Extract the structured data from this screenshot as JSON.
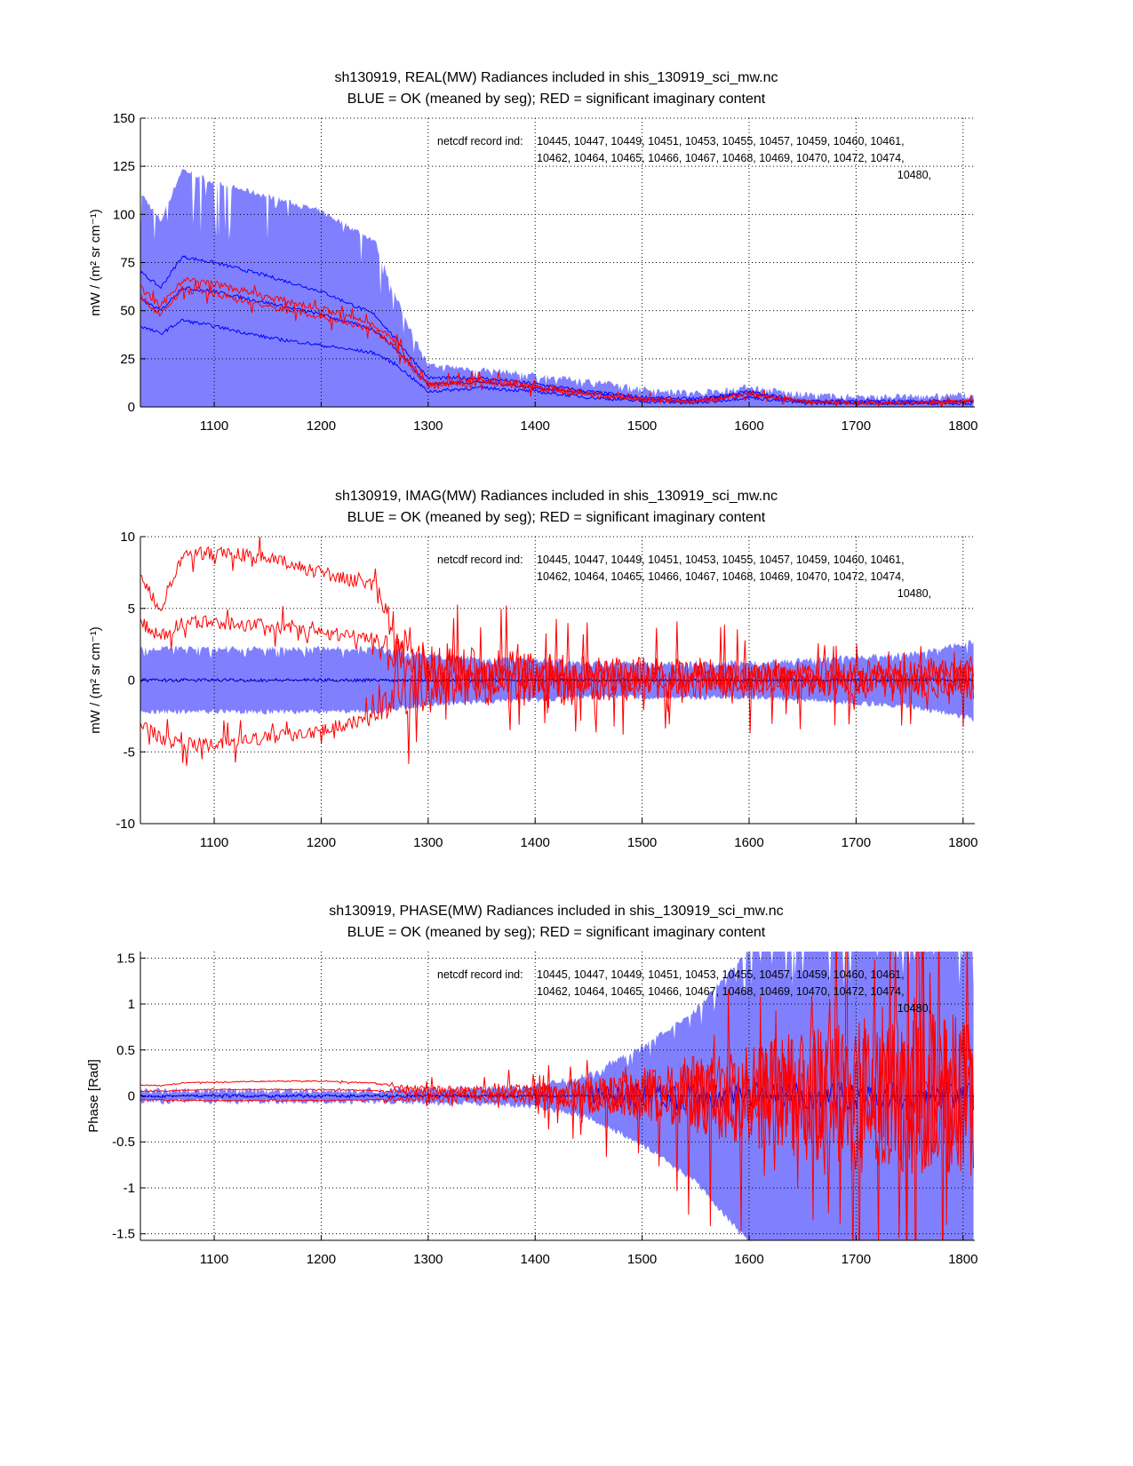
{
  "chart_data": [
    {
      "type": "area",
      "title_line1": "sh130919, REAL(MW) Radiances included in shis_130919_sci_mw.nc",
      "title_line2": "BLUE = OK (meaned by seg); RED = significant imaginary content",
      "ylabel": "mW / (m² sr cm⁻¹)",
      "xlim": [
        1031,
        1811
      ],
      "ylim": [
        0,
        150
      ],
      "xticks": [
        1100,
        1200,
        1300,
        1400,
        1500,
        1600,
        1700,
        1800
      ],
      "yticks": [
        0,
        25,
        50,
        75,
        100,
        125,
        150
      ],
      "ytick_labels": [
        "0",
        "25",
        "50",
        "75",
        "100",
        "125",
        "150"
      ],
      "grid": true,
      "annotation_label": "netcdf record ind:",
      "annotation_lines": [
        "10445, 10447, 10449, 10451, 10453, 10455, 10457, 10459, 10460, 10461,",
        "10462, 10464, 10465, 10466, 10467, 10468, 10469, 10470, 10472, 10474,",
        "10480,"
      ],
      "x": [
        1031,
        1050,
        1070,
        1100,
        1150,
        1200,
        1250,
        1270,
        1300,
        1350,
        1400,
        1450,
        1500,
        1550,
        1600,
        1650,
        1700,
        1750,
        1811
      ],
      "blue_envelope_upper": [
        110,
        95,
        122,
        115,
        108,
        100,
        85,
        55,
        20,
        18,
        15,
        12,
        8,
        6,
        9,
        5,
        4,
        4,
        5
      ],
      "blue_envelope_lower": [
        0,
        0,
        0,
        0,
        0,
        0,
        0,
        0,
        0,
        0,
        0,
        0,
        0,
        0,
        0,
        0,
        0,
        0,
        0
      ],
      "blue_lines": [
        [
          70,
          62,
          78,
          75,
          68,
          60,
          48,
          35,
          15,
          15,
          12,
          8,
          5,
          4,
          8,
          3,
          3,
          3,
          3
        ],
        [
          56,
          50,
          62,
          60,
          54,
          48,
          40,
          30,
          12,
          13,
          10,
          7,
          4,
          3,
          7,
          3,
          2,
          2,
          3
        ],
        [
          42,
          38,
          45,
          42,
          36,
          32,
          28,
          22,
          8,
          10,
          8,
          5,
          3,
          2,
          5,
          2,
          2,
          2,
          2
        ]
      ],
      "red_lines": [
        [
          62,
          52,
          66,
          64,
          57,
          51,
          43,
          33,
          12,
          14,
          11,
          7,
          4,
          3,
          7,
          3,
          2,
          2,
          3
        ],
        [
          57,
          48,
          61,
          59,
          52,
          47,
          40,
          30,
          11,
          13,
          10,
          6,
          4,
          3,
          6,
          3,
          2,
          2,
          3
        ]
      ],
      "red_spread": [
        3,
        3,
        3,
        3,
        3,
        3,
        3,
        3,
        3,
        3,
        3,
        2,
        2,
        1.5,
        1.5,
        1.5,
        1.5,
        1.5,
        1.5
      ]
    },
    {
      "type": "area",
      "title_line1": "sh130919, IMAG(MW) Radiances included in shis_130919_sci_mw.nc",
      "title_line2": "BLUE = OK (meaned by seg); RED = significant imaginary content",
      "ylabel": "mW / (m² sr cm⁻¹)",
      "xlim": [
        1031,
        1811
      ],
      "ylim": [
        -10,
        10
      ],
      "xticks": [
        1100,
        1200,
        1300,
        1400,
        1500,
        1600,
        1700,
        1800
      ],
      "yticks": [
        -10,
        -5,
        0,
        5,
        10
      ],
      "ytick_labels": [
        "-10",
        "-5",
        "0",
        "5",
        "10"
      ],
      "grid": true,
      "annotation_label": "netcdf record ind:",
      "annotation_lines": [
        "10445, 10447, 10449, 10451, 10453, 10455, 10457, 10459, 10460, 10461,",
        "10462, 10464, 10465, 10466, 10467, 10468, 10469, 10470, 10472, 10474,",
        "10480,"
      ],
      "x": [
        1031,
        1050,
        1070,
        1100,
        1150,
        1200,
        1250,
        1270,
        1300,
        1350,
        1400,
        1450,
        1500,
        1550,
        1600,
        1650,
        1700,
        1750,
        1811
      ],
      "blue_envelope_upper": [
        2,
        2,
        2,
        2,
        2,
        2,
        2,
        1.8,
        1.5,
        1.3,
        1.2,
        1.0,
        1.0,
        1.0,
        1.0,
        1.2,
        1.4,
        1.6,
        2.5
      ],
      "blue_envelope_lower": [
        -2,
        -2,
        -2,
        -2,
        -2,
        -2,
        -2,
        -1.8,
        -1.5,
        -1.3,
        -1.2,
        -1.0,
        -1.0,
        -1.0,
        -1.0,
        -1.2,
        -1.4,
        -1.6,
        -2.5
      ],
      "blue_lines": [
        [
          0,
          0,
          0,
          0,
          0,
          0,
          0,
          0,
          0,
          0,
          0,
          0,
          0,
          0,
          0,
          0,
          0,
          0,
          0
        ]
      ],
      "red_lines": [
        [
          7,
          5,
          8.5,
          9,
          8.5,
          7.5,
          6.5,
          3,
          1,
          0.8,
          0.5,
          0.5,
          0.4,
          0.3,
          0.3,
          0.3,
          0.3,
          0.4,
          0.5
        ],
        [
          4,
          3,
          4,
          4,
          3.8,
          3.3,
          3,
          2,
          0.5,
          0.3,
          0.3,
          0.2,
          0.2,
          0.1,
          0.1,
          0.1,
          0.1,
          0.2,
          0.3
        ],
        [
          -3,
          -4,
          -4.5,
          -4.5,
          -4,
          -3.5,
          -2.5,
          -1,
          -0.5,
          -0.3,
          -0.3,
          -0.2,
          -0.2,
          -0.1,
          -0.1,
          -0.1,
          -0.1,
          -0.1,
          -0.2
        ]
      ],
      "red_spread": [
        0.8,
        0.8,
        0.8,
        0.8,
        0.8,
        0.8,
        0.8,
        2.5,
        3,
        2.5,
        2.5,
        2.2,
        2,
        2,
        1.8,
        1.8,
        1.8,
        1.8,
        2
      ]
    },
    {
      "type": "area",
      "title_line1": "sh130919, PHASE(MW) Radiances included in shis_130919_sci_mw.nc",
      "title_line2": "BLUE = OK (meaned by seg); RED = significant imaginary content",
      "ylabel": "Phase [Rad]",
      "xlim": [
        1031,
        1811
      ],
      "ylim": [
        -1.5708,
        1.5708
      ],
      "xticks": [
        1100,
        1200,
        1300,
        1400,
        1500,
        1600,
        1700,
        1800
      ],
      "yticks": [
        -1.5,
        -1,
        -0.5,
        0,
        0.5,
        1,
        1.5
      ],
      "ytick_labels": [
        "-1.5",
        "-1",
        "-0.5",
        "0",
        "0.5",
        "1",
        "1.5"
      ],
      "grid": true,
      "annotation_label": "netcdf record ind:",
      "annotation_lines": [
        "10445, 10447, 10449, 10451, 10453, 10455, 10457, 10459, 10460, 10461,",
        "10462, 10464, 10465, 10466, 10467, 10468, 10469, 10470, 10472, 10474,",
        "10480,"
      ],
      "x": [
        1031,
        1050,
        1070,
        1100,
        1150,
        1200,
        1250,
        1270,
        1300,
        1350,
        1400,
        1450,
        1500,
        1550,
        1600,
        1650,
        1700,
        1750,
        1811
      ],
      "blue_envelope_upper": [
        0.03,
        0.03,
        0.03,
        0.03,
        0.03,
        0.03,
        0.03,
        0.03,
        0.05,
        0.05,
        0.08,
        0.2,
        0.5,
        0.9,
        1.57,
        1.57,
        1.57,
        1.57,
        1.57
      ],
      "blue_envelope_lower": [
        -0.03,
        -0.03,
        -0.03,
        -0.03,
        -0.03,
        -0.03,
        -0.03,
        -0.03,
        -0.05,
        -0.05,
        -0.08,
        -0.2,
        -0.5,
        -0.9,
        -1.57,
        -1.57,
        -1.57,
        -1.57,
        -1.57
      ],
      "blue_lines": [
        [
          0,
          0,
          0,
          0,
          0,
          0,
          0,
          0,
          0,
          0,
          0,
          0,
          0,
          0,
          0,
          0,
          0,
          0,
          0
        ]
      ],
      "red_lines": [
        [
          0.12,
          0.11,
          0.14,
          0.15,
          0.16,
          0.16,
          0.14,
          0.1,
          0.06,
          0.05,
          0.04,
          0.03,
          0.03,
          0.02,
          0.02,
          0.02,
          0.02,
          0.02,
          0.02
        ],
        [
          0.05,
          0.05,
          0.06,
          0.07,
          0.07,
          0.07,
          0.06,
          0.05,
          0.03,
          0.02,
          0.02,
          0.01,
          0.01,
          0.01,
          0.01,
          0.01,
          0.01,
          0.01,
          0.01
        ],
        [
          -0.04,
          -0.04,
          -0.05,
          -0.05,
          -0.05,
          -0.05,
          -0.04,
          -0.03,
          -0.02,
          -0.02,
          -0.01,
          -0.01,
          -0.01,
          -0.01,
          -0.01,
          -0.01,
          -0.01,
          -0.01,
          -0.01
        ]
      ],
      "red_spread": [
        0.01,
        0.01,
        0.01,
        0.01,
        0.01,
        0.01,
        0.01,
        0.03,
        0.08,
        0.1,
        0.15,
        0.3,
        0.5,
        0.7,
        0.9,
        1.2,
        1.4,
        1.5,
        1.5
      ]
    }
  ],
  "colors": {
    "blue_envelope": "#8080ff",
    "blue_line": "#0000ff",
    "red_line": "#ff0000"
  }
}
